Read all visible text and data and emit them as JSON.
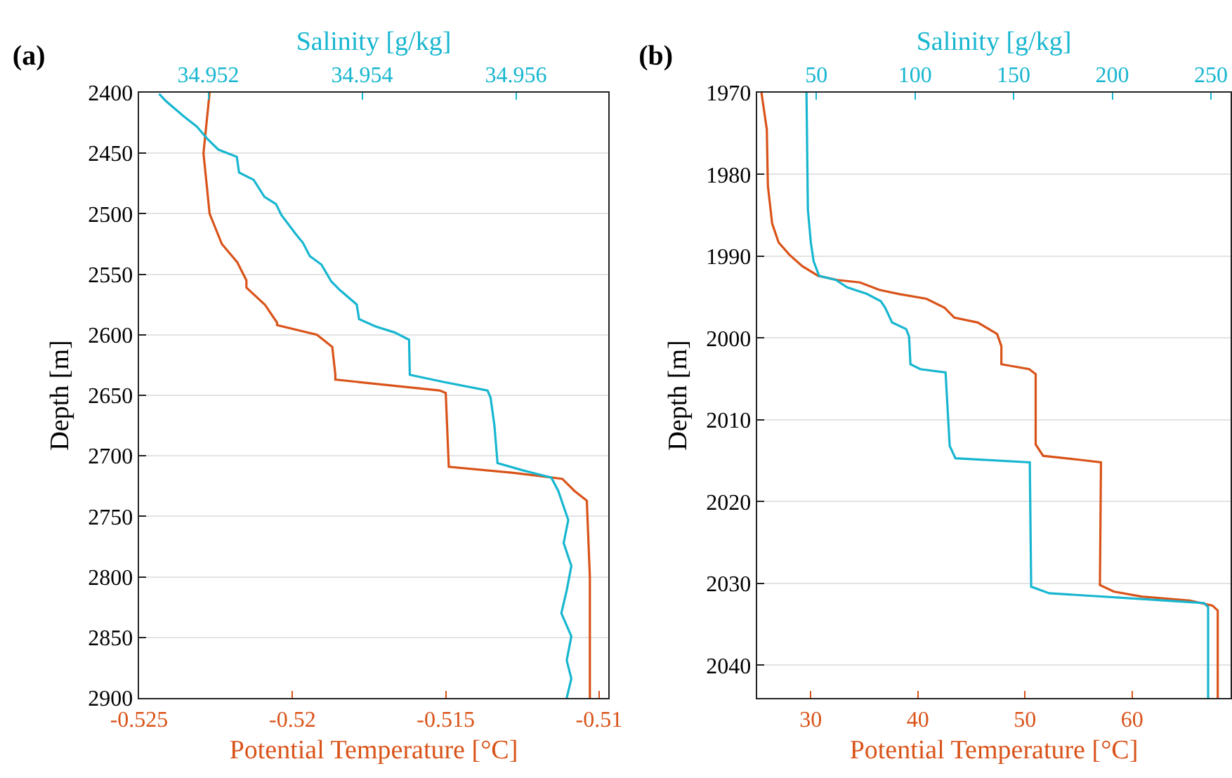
{
  "chart_data": [
    {
      "type": "line",
      "title": "(a)",
      "ylabel": "Depth [m]",
      "xlabel": "Potential Temperature [°C]",
      "x2label": "Salinity [g/kg]",
      "ylim": [
        2900,
        2400
      ],
      "yticks": [
        2400,
        2450,
        2500,
        2550,
        2600,
        2650,
        2700,
        2750,
        2800,
        2850,
        2900
      ],
      "xlim": [
        -0.525,
        -0.5097
      ],
      "xticks": [
        -0.525,
        -0.52,
        -0.515,
        -0.51
      ],
      "x2lim": [
        34.9511,
        34.9572
      ],
      "x2ticks": [
        34.952,
        34.954,
        34.956
      ],
      "grid": "y",
      "marker": "none",
      "line_style": "solid",
      "series": [
        {
          "color": "#d95319",
          "x": [
            -0.5227,
            -0.5229,
            -0.5227,
            -0.5223,
            -0.5218,
            -0.5215,
            -0.5215,
            -0.5209,
            -0.5205,
            -0.5205,
            -0.5192,
            -0.5187,
            -0.5186,
            -0.5186,
            -0.5152,
            -0.515,
            -0.5149,
            -0.5128,
            -0.5112,
            -0.5108,
            -0.5104,
            -0.5103,
            -0.5103
          ],
          "values": [
            2400,
            2450,
            2500,
            2525,
            2540,
            2555,
            2561,
            2575,
            2590,
            2592,
            2600,
            2610,
            2633,
            2637,
            2646,
            2648,
            2709,
            2714,
            2719,
            2729,
            2737,
            2800,
            2900
          ]
        },
        {
          "color": "#17b6d0",
          "axis": "x2",
          "x": [
            34.95136,
            34.95145,
            34.95169,
            34.95185,
            34.952,
            34.95213,
            34.95237,
            34.9524,
            34.95259,
            34.95273,
            34.95288,
            34.95295,
            34.95314,
            34.95323,
            34.95332,
            34.95347,
            34.9536,
            34.95371,
            34.95393,
            34.95396,
            34.95417,
            34.95442,
            34.95461,
            34.95462,
            34.95506,
            34.95563,
            34.95567,
            34.95572,
            34.95576,
            34.95609,
            34.95646,
            34.95655,
            34.95668,
            34.95662,
            34.95672,
            34.95666,
            34.95659,
            34.95672,
            34.95666,
            34.95672,
            34.95666
          ],
          "values": [
            2401,
            2407,
            2420,
            2428,
            2439,
            2447,
            2453,
            2466,
            2472,
            2486,
            2492,
            2501,
            2517,
            2524,
            2535,
            2542,
            2556,
            2563,
            2575,
            2587,
            2593,
            2598,
            2604,
            2633,
            2639,
            2646,
            2652,
            2675,
            2706,
            2712,
            2718,
            2729,
            2753,
            2772,
            2791,
            2811,
            2830,
            2849,
            2869,
            2884,
            2900
          ]
        }
      ]
    },
    {
      "type": "line",
      "title": "(b)",
      "ylabel": "Depth [m]",
      "xlabel": "Potential Temperature [°C]",
      "x2label": "Salinity [g/kg]",
      "ylim": [
        2044,
        1970
      ],
      "yticks": [
        1970,
        1980,
        1990,
        2000,
        2010,
        2020,
        2030,
        2040
      ],
      "xlim": [
        25,
        69.2
      ],
      "xticks": [
        30,
        40,
        50,
        60
      ],
      "x2lim": [
        20,
        260
      ],
      "x2ticks": [
        50,
        100,
        150,
        200,
        250
      ],
      "grid": "y",
      "marker": "none",
      "line_style": "solid",
      "series": [
        {
          "color": "#d95319",
          "x": [
            25.4,
            25.9,
            26.0,
            26.4,
            27.0,
            28.0,
            29.2,
            30.7,
            32.5,
            34.6,
            36.4,
            38.2,
            40.8,
            42.5,
            43.4,
            45.6,
            47.4,
            47.8,
            47.8,
            50.4,
            51.0,
            51.0,
            51.7,
            55.2,
            57.1,
            57.0,
            58.3,
            60.9,
            65.4,
            67.5,
            68.0,
            68.0
          ],
          "values": [
            1970,
            1974.5,
            1981.4,
            1986,
            1988.3,
            1989.8,
            1991.2,
            1992.4,
            1992.9,
            1993.2,
            1994.1,
            1994.6,
            1995.2,
            1996.3,
            1997.5,
            1998.1,
            1999.5,
            2001,
            2003.2,
            2003.8,
            2004.4,
            2013,
            2014.4,
            2014.9,
            2015.2,
            2030.2,
            2031,
            2031.6,
            2032.1,
            2032.7,
            2033.3,
            2044
          ]
        },
        {
          "color": "#17b6d0",
          "axis": "x2",
          "x": [
            45.0,
            45.7,
            47.2,
            48.6,
            51.4,
            59.9,
            65.7,
            75.6,
            82.7,
            84.9,
            88.4,
            95.5,
            97.0,
            97.7,
            102.7,
            115.5,
            117.6,
            120.5,
            158.2,
            158.9,
            168.1,
            215.1,
            246.5,
            248.6,
            248.6
          ],
          "values": [
            1970,
            1984.3,
            1988.3,
            1990.6,
            1992.4,
            1992.9,
            1993.8,
            1994.6,
            1995.5,
            1996.3,
            1998.1,
            1998.9,
            1999.8,
            2003.2,
            2003.8,
            2004.2,
            2013.2,
            2014.7,
            2015.2,
            2030.4,
            2031.2,
            2031.9,
            2032.4,
            2032.9,
            2044
          ]
        }
      ]
    }
  ]
}
